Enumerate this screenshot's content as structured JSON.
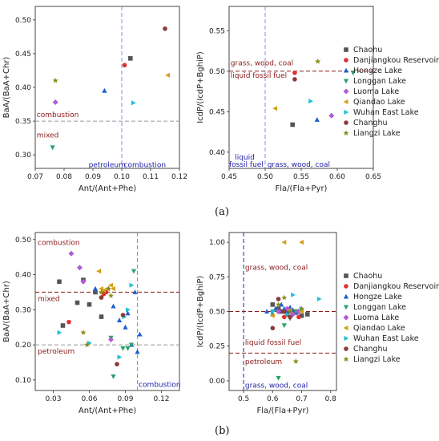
{
  "panel_labels": [
    "(a)",
    "(b)"
  ],
  "styles": {
    "Chaohu": {
      "shape": "square",
      "color": "#555555"
    },
    "Danjiangkou Reservoir": {
      "shape": "circle",
      "color": "#e03030"
    },
    "Hongze Lake": {
      "shape": "triangle-up",
      "color": "#1f5fd0"
    },
    "Longgan Lake": {
      "shape": "triangle-down",
      "color": "#27a36a"
    },
    "Luoma Lake": {
      "shape": "diamond",
      "color": "#b35ad6"
    },
    "Qiandao Lake": {
      "shape": "triangle-left",
      "color": "#d4a017"
    },
    "Wuhan East Lake": {
      "shape": "triangle-right",
      "color": "#22bfd6"
    },
    "Changhu": {
      "shape": "circle",
      "color": "#8b3a3a"
    },
    "Liangzi Lake": {
      "shape": "star",
      "color": "#8a8a1a"
    }
  },
  "chart_data": [
    {
      "id": "a-left",
      "type": "scatter",
      "xlabel": "Ant/(Ant+Phe)",
      "ylabel": "BaA/(BaA+Chr)",
      "xlim": [
        0.07,
        0.12
      ],
      "ylim": [
        0.28,
        0.52
      ],
      "xticks": [
        0.07,
        0.08,
        0.09,
        0.1,
        0.11,
        0.12
      ],
      "xtick_labels": [
        "0.07",
        "0.08",
        "0.09",
        "0.10",
        "0.11",
        "0.12"
      ],
      "yticks": [
        0.3,
        0.35,
        0.4,
        0.45,
        0.5
      ],
      "ytick_labels": [
        "0.30",
        "0.35",
        "0.40",
        "0.45",
        "0.50"
      ],
      "hlines": [
        {
          "y": 0.35,
          "color": "#999999"
        }
      ],
      "vlines": [
        {
          "x": 0.1,
          "color": "#8888ee"
        }
      ],
      "annotations": [
        {
          "text": "combustion",
          "x": 0.0705,
          "y": 0.356,
          "color": "red"
        },
        {
          "text": "mixed",
          "x": 0.0705,
          "y": 0.326,
          "color": "red"
        },
        {
          "text": "petroleum",
          "x": 0.0885,
          "y": 0.282,
          "color": "blue"
        },
        {
          "text": "combustion",
          "x": 0.1007,
          "y": 0.282,
          "color": "blue"
        }
      ],
      "series": [
        {
          "name": "Chaohu",
          "points": [
            [
              0.103,
              0.443
            ]
          ]
        },
        {
          "name": "Danjiangkou Reservoir",
          "points": [
            [
              0.101,
              0.433
            ]
          ]
        },
        {
          "name": "Hongze Lake",
          "points": [
            [
              0.094,
              0.395
            ]
          ]
        },
        {
          "name": "Longgan Lake",
          "points": [
            [
              0.076,
              0.311
            ]
          ]
        },
        {
          "name": "Luoma Lake",
          "points": [
            [
              0.077,
              0.378
            ]
          ]
        },
        {
          "name": "Qiandao Lake",
          "points": [
            [
              0.116,
              0.418
            ]
          ]
        },
        {
          "name": "Wuhan East Lake",
          "points": [
            [
              0.104,
              0.377
            ]
          ]
        },
        {
          "name": "Changhu",
          "points": [
            [
              0.115,
              0.487
            ]
          ]
        },
        {
          "name": "Liangzi Lake",
          "points": [
            [
              0.077,
              0.41
            ]
          ]
        }
      ]
    },
    {
      "id": "a-right",
      "type": "scatter",
      "xlabel": "Fla/(Fla+Pyr)",
      "ylabel": "IcdP/(IcdP+BghiP)",
      "xlim": [
        0.45,
        0.65
      ],
      "ylim": [
        0.38,
        0.58
      ],
      "xticks": [
        0.45,
        0.5,
        0.55,
        0.6,
        0.65
      ],
      "xtick_labels": [
        "0.45",
        "0.50",
        "0.55",
        "0.60",
        "0.65"
      ],
      "yticks": [
        0.4,
        0.45,
        0.5,
        0.55
      ],
      "ytick_labels": [
        "0.40",
        "0.45",
        "0.50",
        "0.55"
      ],
      "hlines": [
        {
          "y": 0.5,
          "color": "#8b1a1a"
        }
      ],
      "vlines": [
        {
          "x": 0.5,
          "color": "#8888ee"
        }
      ],
      "annotations": [
        {
          "text": "grass, wood, coal",
          "x": 0.452,
          "y": 0.507,
          "color": "red"
        },
        {
          "text": "liquid fossil fuel",
          "x": 0.452,
          "y": 0.492,
          "color": "red"
        },
        {
          "text": "liquid",
          "x": 0.458,
          "y": 0.391,
          "color": "blue"
        },
        {
          "text": "fossil fuel",
          "x": 0.45,
          "y": 0.382,
          "color": "blue"
        },
        {
          "text": "grass, wood, coal",
          "x": 0.503,
          "y": 0.382,
          "color": "blue"
        }
      ],
      "series": [
        {
          "name": "Chaohu",
          "points": [
            [
              0.538,
              0.434
            ]
          ]
        },
        {
          "name": "Danjiangkou Reservoir",
          "points": [
            [
              0.541,
              0.498
            ]
          ]
        },
        {
          "name": "Hongze Lake",
          "points": [
            [
              0.572,
              0.44
            ]
          ]
        },
        {
          "name": "Longgan Lake",
          "points": [
            [
              0.622,
              0.498
            ]
          ]
        },
        {
          "name": "Luoma Lake",
          "points": [
            [
              0.592,
              0.445
            ]
          ]
        },
        {
          "name": "Qiandao Lake",
          "points": [
            [
              0.514,
              0.454
            ]
          ]
        },
        {
          "name": "Wuhan East Lake",
          "points": [
            [
              0.563,
              0.463
            ]
          ]
        },
        {
          "name": "Changhu",
          "points": [
            [
              0.541,
              0.49
            ]
          ]
        },
        {
          "name": "Liangzi Lake",
          "points": [
            [
              0.573,
              0.512
            ]
          ]
        }
      ]
    },
    {
      "id": "b-left",
      "type": "scatter",
      "xlabel": "Ant/(Ant+Phe)",
      "ylabel": "BaA/(BaA+Chr)",
      "xlim": [
        0.015,
        0.135
      ],
      "ylim": [
        0.07,
        0.52
      ],
      "xticks": [
        0.03,
        0.06,
        0.09,
        0.12
      ],
      "xtick_labels": [
        "0.03",
        "0.06",
        "0.09",
        "0.12"
      ],
      "yticks": [
        0.1,
        0.2,
        0.3,
        0.4,
        0.5
      ],
      "ytick_labels": [
        "0.10",
        "0.20",
        "0.30",
        "0.40",
        "0.50"
      ],
      "hlines": [
        {
          "y": 0.35,
          "color": "#8b1a1a"
        },
        {
          "y": 0.2,
          "color": "#999999"
        }
      ],
      "vlines": [
        {
          "x": 0.1,
          "color": "#8888ee"
        }
      ],
      "annotations": [
        {
          "text": "combustion",
          "x": 0.017,
          "y": 0.485,
          "color": "red"
        },
        {
          "text": "mixed",
          "x": 0.017,
          "y": 0.325,
          "color": "red"
        },
        {
          "text": "petroleum",
          "x": 0.017,
          "y": 0.175,
          "color": "red"
        },
        {
          "text": "combustion",
          "x": 0.101,
          "y": 0.08,
          "color": "blue"
        }
      ],
      "series": [
        {
          "name": "Chaohu",
          "points": [
            [
              0.035,
              0.38
            ],
            [
              0.038,
              0.255
            ],
            [
              0.05,
              0.32
            ],
            [
              0.055,
              0.385
            ],
            [
              0.06,
              0.315
            ],
            [
              0.065,
              0.35
            ],
            [
              0.07,
              0.28
            ]
          ]
        },
        {
          "name": "Danjiangkou Reservoir",
          "points": [
            [
              0.043,
              0.265
            ],
            [
              0.07,
              0.335
            ],
            [
              0.072,
              0.345
            ],
            [
              0.074,
              0.35
            ]
          ]
        },
        {
          "name": "Hongze Lake",
          "points": [
            [
              0.065,
              0.36
            ],
            [
              0.08,
              0.31
            ],
            [
              0.085,
              0.27
            ],
            [
              0.09,
              0.25
            ],
            [
              0.095,
              0.2
            ],
            [
              0.098,
              0.35
            ],
            [
              0.1,
              0.18
            ],
            [
              0.102,
              0.23
            ],
            [
              0.092,
              0.29
            ]
          ]
        },
        {
          "name": "Longgan Lake",
          "points": [
            [
              0.08,
              0.11
            ],
            [
              0.088,
              0.19
            ],
            [
              0.092,
              0.19
            ],
            [
              0.095,
              0.2
            ],
            [
              0.097,
              0.41
            ],
            [
              0.078,
              0.22
            ]
          ]
        },
        {
          "name": "Luoma Lake",
          "points": [
            [
              0.045,
              0.46
            ],
            [
              0.052,
              0.42
            ],
            [
              0.055,
              0.38
            ],
            [
              0.078,
              0.215
            ]
          ]
        },
        {
          "name": "Qiandao Lake",
          "points": [
            [
              0.068,
              0.41
            ],
            [
              0.07,
              0.36
            ],
            [
              0.072,
              0.355
            ],
            [
              0.075,
              0.36
            ],
            [
              0.078,
              0.37
            ],
            [
              0.08,
              0.36
            ]
          ]
        },
        {
          "name": "Wuhan East Lake",
          "points": [
            [
              0.035,
              0.235
            ],
            [
              0.06,
              0.205
            ],
            [
              0.085,
              0.165
            ],
            [
              0.095,
              0.37
            ],
            [
              0.092,
              0.3
            ],
            [
              0.089,
              0.28
            ]
          ]
        },
        {
          "name": "Changhu",
          "points": [
            [
              0.083,
              0.145
            ],
            [
              0.088,
              0.285
            ],
            [
              0.07,
              0.335
            ]
          ]
        },
        {
          "name": "Liangzi Lake",
          "points": [
            [
              0.055,
              0.235
            ],
            [
              0.058,
              0.2
            ],
            [
              0.07,
              0.35
            ],
            [
              0.076,
              0.36
            ],
            [
              0.078,
              0.34
            ]
          ]
        }
      ]
    },
    {
      "id": "b-right",
      "type": "scatter",
      "xlabel": "Fla/(Fla+Pyr)",
      "ylabel": "IcdP/(IcdP+BghiP)",
      "xlim": [
        0.45,
        0.82
      ],
      "ylim": [
        -0.07,
        1.07
      ],
      "xticks": [
        0.5,
        0.6,
        0.7,
        0.8
      ],
      "xtick_labels": [
        "0.5",
        "0.6",
        "0.7",
        "0.8"
      ],
      "yticks": [
        0.0,
        0.25,
        0.5,
        0.75,
        1.0
      ],
      "ytick_labels": [
        "0.00",
        "0.25",
        "0.50",
        "0.75",
        "1.00"
      ],
      "hlines": [
        {
          "y": 0.5,
          "color": "#8b1a1a"
        },
        {
          "y": 0.2,
          "color": "#8b1a1a"
        }
      ],
      "vlines": [
        {
          "x": 0.5,
          "color": "#2222aa"
        }
      ],
      "annotations": [
        {
          "text": "grass, wood, coal",
          "x": 0.505,
          "y": 0.8,
          "color": "red"
        },
        {
          "text": "liquid fossil fuel",
          "x": 0.505,
          "y": 0.26,
          "color": "red"
        },
        {
          "text": "petroleum",
          "x": 0.505,
          "y": 0.12,
          "color": "red"
        },
        {
          "text": "grass, wood, coal",
          "x": 0.505,
          "y": -0.05,
          "color": "blue"
        }
      ],
      "series": [
        {
          "name": "Chaohu",
          "points": [
            [
              0.6,
              0.55
            ],
            [
              0.62,
              0.52
            ],
            [
              0.65,
              0.48
            ],
            [
              0.68,
              0.5
            ],
            [
              0.7,
              0.47
            ],
            [
              0.72,
              0.48
            ],
            [
              0.63,
              0.5
            ]
          ]
        },
        {
          "name": "Danjiangkou Reservoir",
          "points": [
            [
              0.62,
              0.5
            ],
            [
              0.64,
              0.46
            ],
            [
              0.66,
              0.5
            ],
            [
              0.69,
              0.46
            ]
          ]
        },
        {
          "name": "Hongze Lake",
          "points": [
            [
              0.58,
              0.5
            ],
            [
              0.6,
              0.48
            ],
            [
              0.61,
              0.52
            ],
            [
              0.63,
              0.55
            ],
            [
              0.64,
              0.52
            ],
            [
              0.65,
              0.5
            ],
            [
              0.66,
              0.53
            ],
            [
              0.67,
              0.51
            ],
            [
              0.68,
              0.49
            ]
          ]
        },
        {
          "name": "Longgan Lake",
          "points": [
            [
              0.6,
              0.5
            ],
            [
              0.62,
              0.02
            ],
            [
              0.64,
              0.4
            ],
            [
              0.66,
              0.45
            ],
            [
              0.68,
              0.5
            ]
          ]
        },
        {
          "name": "Luoma Lake",
          "points": [
            [
              0.62,
              0.5
            ],
            [
              0.65,
              0.52
            ],
            [
              0.67,
              0.48
            ],
            [
              0.69,
              0.5
            ]
          ]
        },
        {
          "name": "Qiandao Lake",
          "points": [
            [
              0.64,
              1.0
            ],
            [
              0.7,
              1.0
            ],
            [
              0.6,
              0.47
            ],
            [
              0.66,
              0.51
            ],
            [
              0.7,
              0.5
            ]
          ]
        },
        {
          "name": "Wuhan East Lake",
          "points": [
            [
              0.6,
              0.5
            ],
            [
              0.65,
              0.48
            ],
            [
              0.67,
              0.62
            ],
            [
              0.7,
              0.52
            ],
            [
              0.76,
              0.59
            ]
          ]
        },
        {
          "name": "Changhu",
          "points": [
            [
              0.6,
              0.38
            ],
            [
              0.62,
              0.59
            ],
            [
              0.64,
              0.5
            ],
            [
              0.66,
              0.46
            ]
          ]
        },
        {
          "name": "Liangzi Lake",
          "points": [
            [
              0.62,
              0.55
            ],
            [
              0.64,
              0.6
            ],
            [
              0.66,
              0.5
            ],
            [
              0.68,
              0.14
            ],
            [
              0.7,
              0.52
            ]
          ]
        }
      ]
    }
  ],
  "legend": [
    "Chaohu",
    "Danjiangkou Reservoir",
    "Hongze Lake",
    "Longgan Lake",
    "Luoma Lake",
    "Qiandao Lake",
    "Wuhan East Lake",
    "Changhu",
    "Liangzi Lake"
  ]
}
